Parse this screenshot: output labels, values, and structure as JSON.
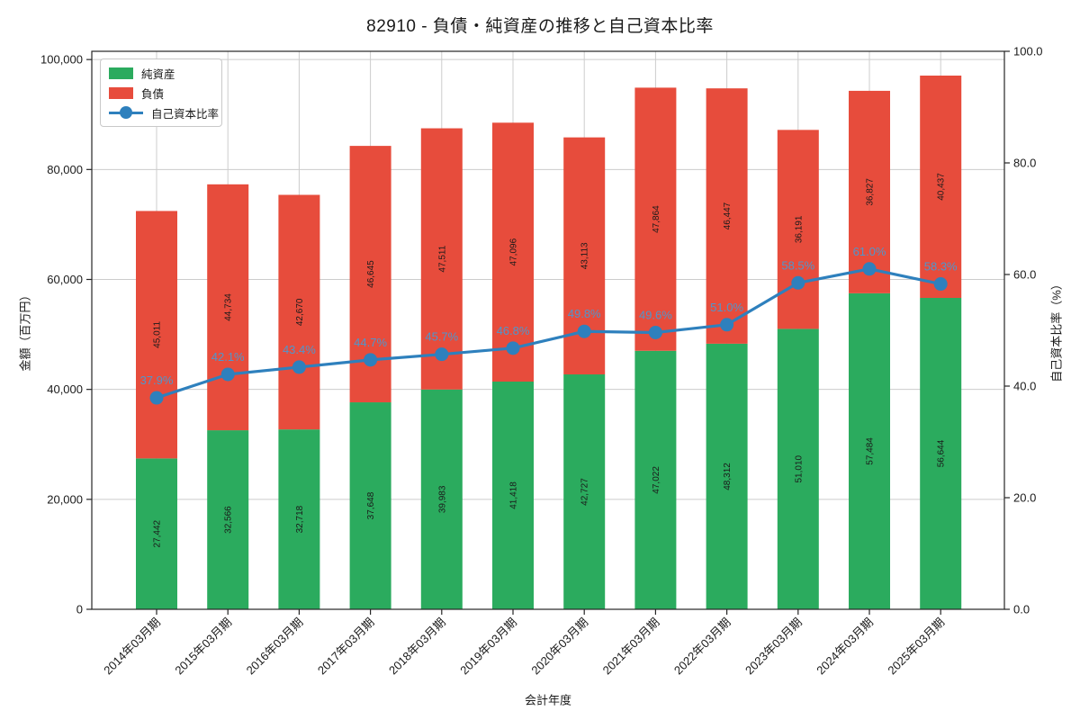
{
  "title": "82910 - 負債・純資産の推移と自己資本比率",
  "legend": {
    "items": [
      {
        "label": "純資産"
      },
      {
        "label": "負債"
      },
      {
        "label": "自己資本比率"
      }
    ]
  },
  "axes": {
    "x_label": "会計年度",
    "y_left_label": "金額（百万円）",
    "y_right_label": "自己資本比率（%）",
    "y_left_tick_labels": [
      "0",
      "20,000",
      "40,000",
      "60,000",
      "80,000",
      "100,000"
    ],
    "y_right_tick_labels": [
      "0.0",
      "20.0",
      "40.0",
      "60.0",
      "80.0",
      "100.0"
    ]
  },
  "colors": {
    "equity_bar": "#2bab5e",
    "liabilities_bar": "#e74c3c",
    "ratio_line": "#2e80bd",
    "ratio_label": "#4f96cc",
    "grid": "#cccccc",
    "spine": "#262626",
    "text": "#1a1a1a"
  },
  "chart_data": {
    "type": "bar",
    "subtype": "stacked-bars-with-line-overlay",
    "title": "82910 - 負債・純資産の推移と自己資本比率",
    "categories": [
      "2014年03月期",
      "2015年03月期",
      "2016年03月期",
      "2017年03月期",
      "2018年03月期",
      "2019年03月期",
      "2020年03月期",
      "2021年03月期",
      "2022年03月期",
      "2023年03月期",
      "2024年03月期",
      "2025年03月期"
    ],
    "series": [
      {
        "name": "純資産",
        "kind": "bar",
        "stack_order": 0,
        "color": "#2bab5e",
        "values": [
          27442,
          32566,
          32718,
          37648,
          39983,
          41418,
          42727,
          47022,
          48312,
          51010,
          57484,
          56644
        ]
      },
      {
        "name": "負債",
        "kind": "bar",
        "stack_order": 1,
        "color": "#e74c3c",
        "values": [
          45011,
          44734,
          42670,
          46645,
          47511,
          47096,
          43113,
          47864,
          46447,
          36191,
          36827,
          40437
        ]
      },
      {
        "name": "自己資本比率",
        "kind": "line",
        "axis": "right",
        "unit": "%",
        "color": "#2e80bd",
        "values": [
          37.9,
          42.1,
          43.4,
          44.7,
          45.7,
          46.8,
          49.8,
          49.6,
          51.0,
          58.5,
          61.0,
          58.3
        ]
      }
    ],
    "xlabel": "会計年度",
    "ylabel": "金額（百万円）",
    "ylabel2": "自己資本比率（%）",
    "ylim": [
      0,
      101500
    ],
    "ylim2": [
      0,
      100
    ],
    "yticks": [
      0,
      20000,
      40000,
      60000,
      80000,
      100000
    ],
    "yticks2": [
      0,
      20,
      40,
      60,
      80,
      100
    ],
    "grid": true,
    "legend_position": "upper-left"
  }
}
